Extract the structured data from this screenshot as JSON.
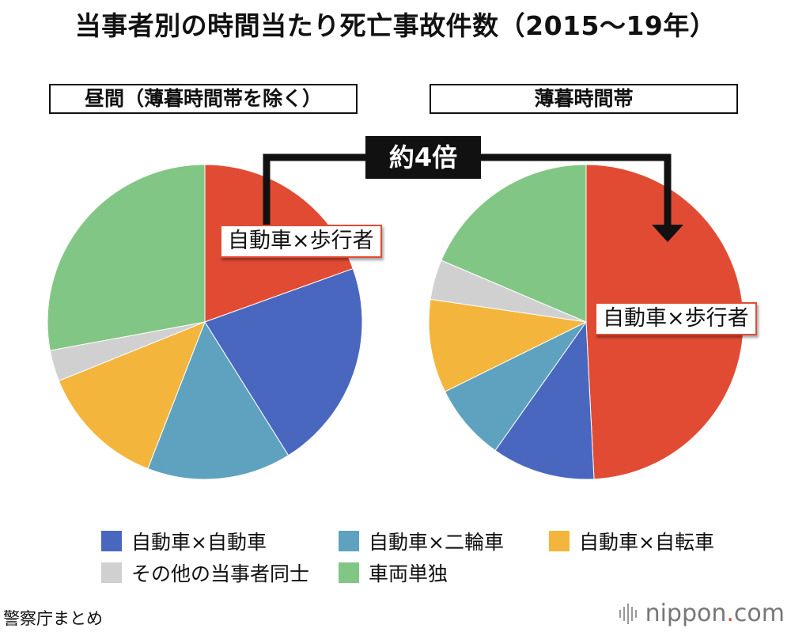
{
  "title": "当事者別の時間当たり死亡事故件数（2015〜19年）",
  "chart_data": [
    {
      "type": "pie",
      "title": "昼間（薄暮時間帯を除く）",
      "categories": [
        "自動車×歩行者",
        "自動車×自動車",
        "自動車×二輪車",
        "自動車×自転車",
        "その他の当事者同士",
        "車両単独"
      ],
      "values": [
        19.5,
        21.6,
        14.8,
        13.0,
        3.2,
        27.9
      ],
      "callout": "自動車×歩行者"
    },
    {
      "type": "pie",
      "title": "薄暮時間帯",
      "categories": [
        "自動車×歩行者",
        "自動車×自動車",
        "自動車×二輪車",
        "自動車×自転車",
        "その他の当事者同士",
        "車両単独"
      ],
      "values": [
        49.2,
        10.6,
        7.9,
        9.6,
        4.1,
        18.6
      ],
      "callout": "自動車×歩行者"
    }
  ],
  "comparison_label": "約4倍",
  "legend": [
    {
      "label": "自動車×自動車",
      "color": "#4a67bf"
    },
    {
      "label": "自動車×二輪車",
      "color": "#5ea2bf"
    },
    {
      "label": "自動車×自転車",
      "color": "#f4b53c"
    },
    {
      "label": "その他の当事者同士",
      "color": "#d0d0d0"
    },
    {
      "label": "車両単独",
      "color": "#81c684"
    }
  ],
  "colors": {
    "自動車×歩行者": "#e24b33",
    "自動車×自動車": "#4a67bf",
    "自動車×二輪車": "#5ea2bf",
    "自動車×自転車": "#f4b53c",
    "その他の当事者同士": "#d0d0d0",
    "車両単独": "#81c684"
  },
  "source": "警察庁まとめ",
  "logo": {
    "main": "nippon",
    "dot": ".",
    "suffix": "com"
  }
}
